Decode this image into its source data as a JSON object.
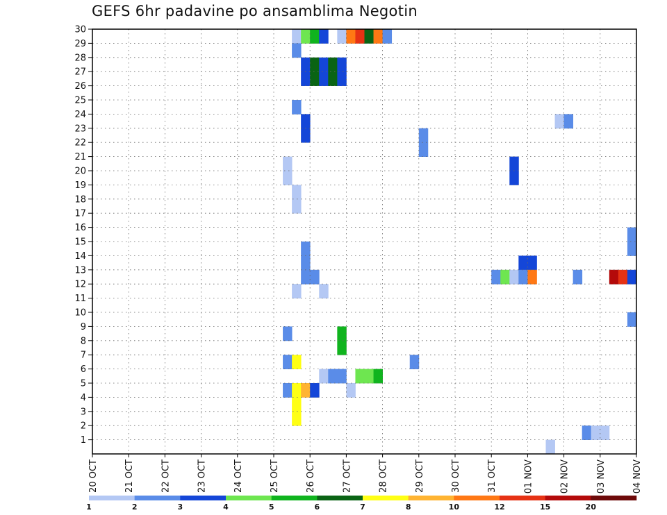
{
  "chart_data": {
    "type": "heatmap",
    "title": "GEFS 6hr padavine po ansamblima Negotin",
    "xlabel": "",
    "ylabel": "",
    "x_tick_labels": [
      "20 OCT",
      "21 OCT",
      "22 OCT",
      "23 OCT",
      "24 OCT",
      "25 OCT",
      "26 OCT",
      "27 OCT",
      "28 OCT",
      "29 OCT",
      "30 OCT",
      "31 OCT",
      "01 NOV",
      "02 NOV",
      "03 NOV",
      "04 NOV"
    ],
    "y_tick_labels": [
      "1",
      "2",
      "3",
      "4",
      "5",
      "6",
      "7",
      "8",
      "9",
      "10",
      "11",
      "12",
      "13",
      "14",
      "15",
      "16",
      "17",
      "18",
      "19",
      "20",
      "21",
      "22",
      "23",
      "24",
      "25",
      "26",
      "27",
      "28",
      "29",
      "30"
    ],
    "xlim_steps": [
      0,
      60
    ],
    "ylim": [
      0,
      30
    ],
    "grid": true,
    "legend": {
      "placement": "bottom",
      "levels": [
        "1",
        "2",
        "3",
        "4",
        "5",
        "6",
        "7",
        "8",
        "10",
        "12",
        "15",
        "20"
      ],
      "colors": [
        "#b4c8f4",
        "#5a8ce8",
        "#1446d8",
        "#6ee650",
        "#10b41e",
        "#0a6414",
        "#ffff14",
        "#ffb432",
        "#ff7814",
        "#e63214",
        "#b40a0a",
        "#6e0a0a"
      ]
    },
    "cells": [
      [
        22,
        29,
        0
      ],
      [
        23,
        29,
        3
      ],
      [
        24,
        29,
        4
      ],
      [
        25,
        29,
        2
      ],
      [
        27,
        29,
        0
      ],
      [
        28,
        29,
        8
      ],
      [
        29,
        29,
        9
      ],
      [
        30,
        29,
        5
      ],
      [
        31,
        29,
        8
      ],
      [
        32,
        29,
        1
      ],
      [
        22,
        28,
        1
      ],
      [
        23,
        27,
        2
      ],
      [
        24,
        27,
        5
      ],
      [
        25,
        27,
        2
      ],
      [
        26,
        27,
        5
      ],
      [
        27,
        27,
        2
      ],
      [
        23,
        26,
        2
      ],
      [
        24,
        26,
        5
      ],
      [
        25,
        26,
        2
      ],
      [
        26,
        26,
        5
      ],
      [
        27,
        26,
        2
      ],
      [
        22,
        24,
        1
      ],
      [
        23,
        23,
        2
      ],
      [
        51,
        23,
        0
      ],
      [
        52,
        23,
        1
      ],
      [
        23,
        22,
        2
      ],
      [
        36,
        22,
        1
      ],
      [
        36,
        21,
        1
      ],
      [
        21,
        20,
        0
      ],
      [
        46,
        20,
        2
      ],
      [
        21,
        19,
        0
      ],
      [
        46,
        19,
        2
      ],
      [
        22,
        18,
        0
      ],
      [
        22,
        17,
        0
      ],
      [
        59,
        15,
        1
      ],
      [
        23,
        14,
        1
      ],
      [
        59,
        14,
        1
      ],
      [
        23,
        13,
        1
      ],
      [
        47,
        13,
        2
      ],
      [
        48,
        13,
        2
      ],
      [
        23,
        12,
        1
      ],
      [
        24,
        12,
        1
      ],
      [
        44,
        12,
        1
      ],
      [
        45,
        12,
        3
      ],
      [
        46,
        12,
        0
      ],
      [
        47,
        12,
        1
      ],
      [
        48,
        12,
        8
      ],
      [
        53,
        12,
        1
      ],
      [
        57,
        12,
        10
      ],
      [
        58,
        12,
        9
      ],
      [
        59,
        12,
        2
      ],
      [
        22,
        11,
        0
      ],
      [
        25,
        11,
        0
      ],
      [
        59,
        9,
        1
      ],
      [
        21,
        8,
        1
      ],
      [
        27,
        8,
        4
      ],
      [
        27,
        7,
        4
      ],
      [
        21,
        6,
        1
      ],
      [
        22,
        6,
        6
      ],
      [
        35,
        6,
        1
      ],
      [
        25,
        5,
        0
      ],
      [
        26,
        5,
        1
      ],
      [
        27,
        5,
        1
      ],
      [
        29,
        5,
        3
      ],
      [
        30,
        5,
        3
      ],
      [
        31,
        5,
        4
      ],
      [
        21,
        4,
        1
      ],
      [
        22,
        4,
        6
      ],
      [
        23,
        4,
        7
      ],
      [
        24,
        4,
        2
      ],
      [
        28,
        4,
        0
      ],
      [
        22,
        3,
        6
      ],
      [
        22,
        2,
        6
      ],
      [
        54,
        1,
        1
      ],
      [
        55,
        1,
        0
      ],
      [
        56,
        1,
        0
      ],
      [
        50,
        0,
        0
      ]
    ]
  }
}
